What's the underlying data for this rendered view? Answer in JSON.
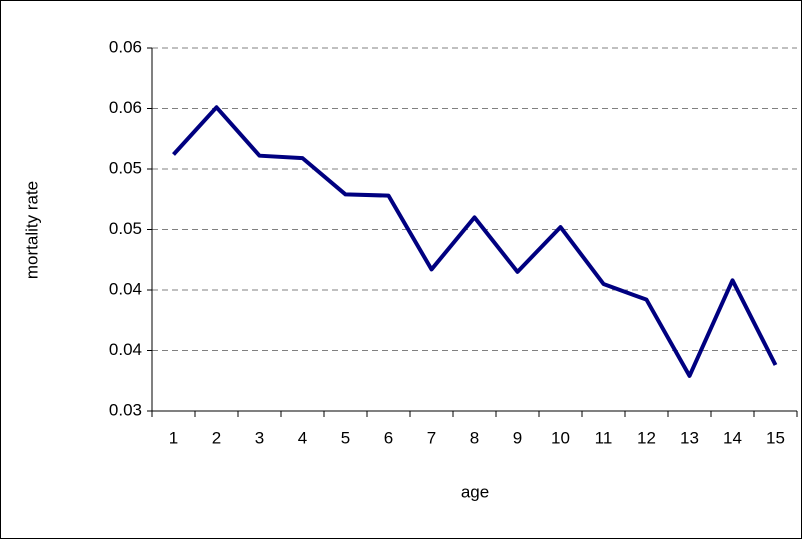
{
  "chart_data": {
    "type": "line",
    "x_label": "age",
    "y_label": "mortality rate",
    "categories": [
      "1",
      "2",
      "3",
      "4",
      "5",
      "6",
      "7",
      "8",
      "9",
      "10",
      "11",
      "12",
      "13",
      "14",
      "15"
    ],
    "series": [
      {
        "color": "#000080",
        "values": [
          0.0512,
          0.0551,
          0.0511,
          0.0509,
          0.0479,
          0.0478,
          0.0417,
          0.046,
          0.0415,
          0.0452,
          0.0405,
          0.0392,
          0.0329,
          0.0408,
          0.0338
        ]
      }
    ],
    "ylim": [
      0.03,
      0.06
    ],
    "yticks": [
      0.03,
      {
        "value": 0.035,
        "label": "0.04"
      },
      0.04,
      {
        "value": 0.045,
        "label": "0.05"
      },
      0.05,
      {
        "value": 0.055,
        "label": "0.06"
      },
      0.06
    ],
    "grid": true
  }
}
